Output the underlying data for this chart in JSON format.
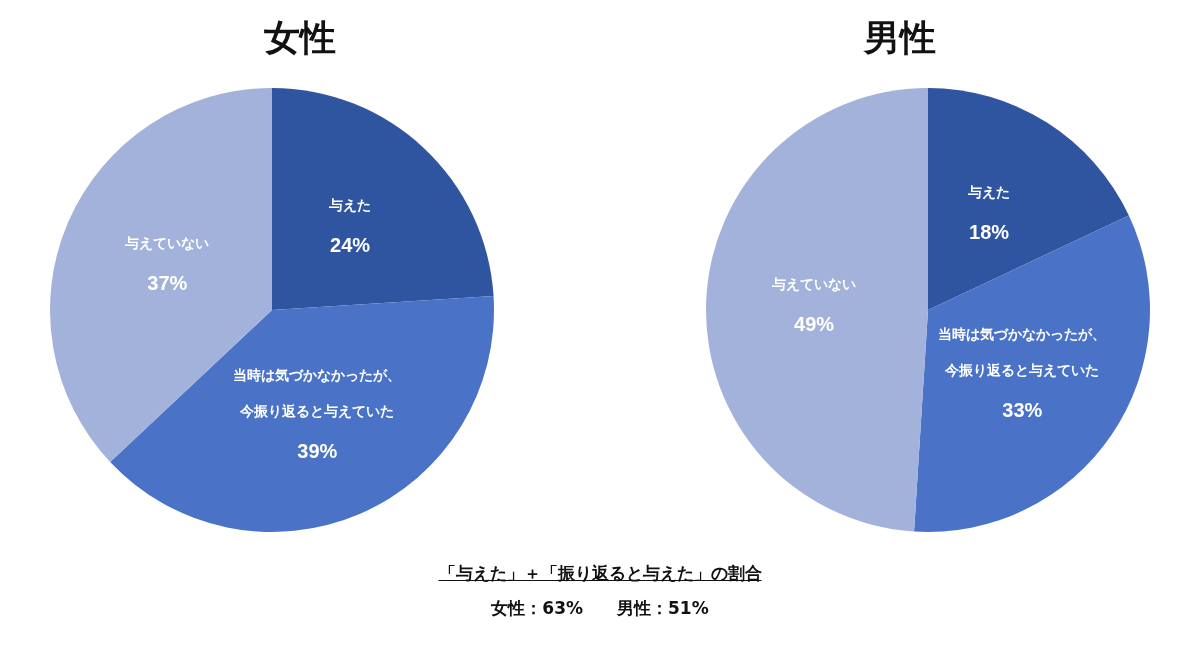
{
  "chart_data": [
    {
      "type": "pie",
      "title": "女性",
      "categories": [
        "与えた",
        "当時は気づかなかったが、今振り返ると与えていた",
        "与えていない"
      ],
      "values": [
        24,
        39,
        37
      ],
      "value_labels": [
        "24%",
        "39%",
        "37%"
      ],
      "colors": [
        "#2f54a0",
        "#4a73c8",
        "#a3b2da"
      ],
      "legend": false,
      "annotations": [
        "「与えた」＋「振り返ると与えた」の割合",
        "女性：63%　　男性：51%"
      ]
    },
    {
      "type": "pie",
      "title": "男性",
      "categories": [
        "与えた",
        "当時は気づかなかったが、今振り返ると与えていた",
        "与えていない"
      ],
      "values": [
        18,
        33,
        49
      ],
      "value_labels": [
        "18%",
        "33%",
        "49%"
      ],
      "colors": [
        "#2f54a0",
        "#4a73c8",
        "#a3b2da"
      ],
      "legend": false
    }
  ]
}
